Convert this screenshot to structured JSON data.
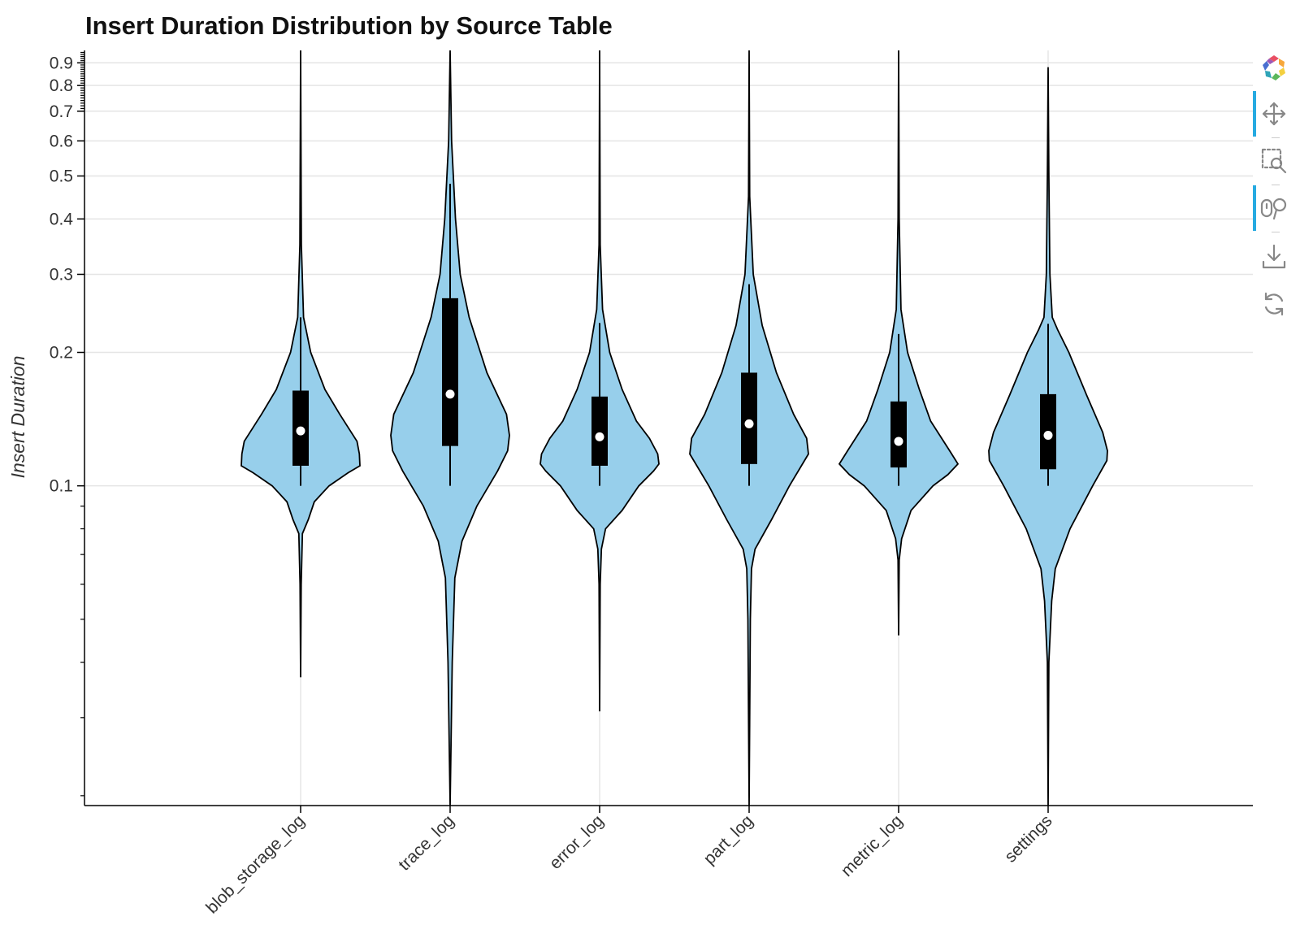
{
  "chart_data": {
    "type": "violin",
    "title": "Insert Duration Distribution by Source Table",
    "xlabel": "",
    "ylabel": "Insert Duration",
    "yscale": "log",
    "ylim": [
      0.019,
      0.96
    ],
    "y_ticks": [
      0.1,
      0.2,
      0.3,
      0.4,
      0.5,
      0.6,
      0.7,
      0.8,
      0.9
    ],
    "y_tick_labels": [
      "0.1",
      "0.2",
      "0.3",
      "0.4",
      "0.5",
      "0.6",
      "0.7",
      "0.8",
      "0.9"
    ],
    "categories": [
      "blob_storage_log",
      "trace_log",
      "error_log",
      "part_log",
      "metric_log",
      "settings"
    ],
    "fill_color": "#97cfeb",
    "outline_color": "#000000",
    "grid": true,
    "series": [
      {
        "name": "blob_storage_log",
        "min": 0.037,
        "max": 1.0,
        "q1": 0.111,
        "median": 0.133,
        "q3": 0.164,
        "whisker_low": 0.1,
        "whisker_high": 0.24,
        "profile": [
          [
            0.037,
            0.0
          ],
          [
            0.06,
            0.01
          ],
          [
            0.078,
            0.03
          ],
          [
            0.084,
            0.13
          ],
          [
            0.092,
            0.23
          ],
          [
            0.1,
            0.48
          ],
          [
            0.107,
            0.8
          ],
          [
            0.111,
            1.0
          ],
          [
            0.118,
            0.99
          ],
          [
            0.126,
            0.95
          ],
          [
            0.145,
            0.66
          ],
          [
            0.165,
            0.41
          ],
          [
            0.2,
            0.17
          ],
          [
            0.24,
            0.05
          ],
          [
            0.35,
            0.012
          ],
          [
            1.0,
            0.0
          ]
        ]
      },
      {
        "name": "trace_log",
        "min": 0.019,
        "max": 1.0,
        "q1": 0.123,
        "median": 0.161,
        "q3": 0.265,
        "whisker_low": 0.1,
        "whisker_high": 0.48,
        "profile": [
          [
            0.019,
            0.0
          ],
          [
            0.04,
            0.035
          ],
          [
            0.062,
            0.08
          ],
          [
            0.075,
            0.2
          ],
          [
            0.09,
            0.45
          ],
          [
            0.108,
            0.8
          ],
          [
            0.12,
            0.97
          ],
          [
            0.13,
            1.0
          ],
          [
            0.145,
            0.95
          ],
          [
            0.18,
            0.62
          ],
          [
            0.24,
            0.32
          ],
          [
            0.3,
            0.17
          ],
          [
            0.4,
            0.09
          ],
          [
            0.6,
            0.025
          ],
          [
            1.0,
            0.0
          ]
        ]
      },
      {
        "name": "error_log",
        "min": 0.031,
        "max": 1.0,
        "q1": 0.111,
        "median": 0.129,
        "q3": 0.159,
        "whisker_low": 0.1,
        "whisker_high": 0.233,
        "profile": [
          [
            0.031,
            0.0
          ],
          [
            0.06,
            0.01
          ],
          [
            0.072,
            0.03
          ],
          [
            0.08,
            0.1
          ],
          [
            0.088,
            0.38
          ],
          [
            0.1,
            0.66
          ],
          [
            0.108,
            0.91
          ],
          [
            0.112,
            1.0
          ],
          [
            0.118,
            0.98
          ],
          [
            0.128,
            0.84
          ],
          [
            0.14,
            0.62
          ],
          [
            0.165,
            0.38
          ],
          [
            0.2,
            0.17
          ],
          [
            0.25,
            0.05
          ],
          [
            0.35,
            0.01
          ],
          [
            1.0,
            0.0
          ]
        ]
      },
      {
        "name": "part_log",
        "min": 0.019,
        "max": 1.0,
        "q1": 0.112,
        "median": 0.138,
        "q3": 0.18,
        "whisker_low": 0.1,
        "whisker_high": 0.285,
        "profile": [
          [
            0.019,
            0.0
          ],
          [
            0.05,
            0.02
          ],
          [
            0.065,
            0.04
          ],
          [
            0.072,
            0.1
          ],
          [
            0.084,
            0.38
          ],
          [
            0.1,
            0.68
          ],
          [
            0.118,
            1.0
          ],
          [
            0.128,
            0.97
          ],
          [
            0.145,
            0.75
          ],
          [
            0.18,
            0.46
          ],
          [
            0.23,
            0.22
          ],
          [
            0.3,
            0.07
          ],
          [
            0.45,
            0.01
          ],
          [
            1.0,
            0.0
          ]
        ]
      },
      {
        "name": "metric_log",
        "min": 0.046,
        "max": 1.0,
        "q1": 0.11,
        "median": 0.126,
        "q3": 0.155,
        "whisker_low": 0.1,
        "whisker_high": 0.22,
        "profile": [
          [
            0.046,
            0.0
          ],
          [
            0.068,
            0.01
          ],
          [
            0.076,
            0.05
          ],
          [
            0.088,
            0.21
          ],
          [
            0.1,
            0.58
          ],
          [
            0.106,
            0.83
          ],
          [
            0.112,
            1.0
          ],
          [
            0.12,
            0.86
          ],
          [
            0.14,
            0.54
          ],
          [
            0.165,
            0.35
          ],
          [
            0.2,
            0.15
          ],
          [
            0.25,
            0.04
          ],
          [
            0.4,
            0.01
          ],
          [
            1.0,
            0.0
          ]
        ]
      },
      {
        "name": "settings",
        "min": 0.019,
        "max": 0.88,
        "q1": 0.109,
        "median": 0.13,
        "q3": 0.161,
        "whisker_low": 0.1,
        "whisker_high": 0.232,
        "profile": [
          [
            0.019,
            0.0
          ],
          [
            0.04,
            0.012
          ],
          [
            0.055,
            0.06
          ],
          [
            0.065,
            0.12
          ],
          [
            0.08,
            0.37
          ],
          [
            0.1,
            0.75
          ],
          [
            0.114,
            0.99
          ],
          [
            0.12,
            1.0
          ],
          [
            0.132,
            0.92
          ],
          [
            0.16,
            0.65
          ],
          [
            0.2,
            0.35
          ],
          [
            0.225,
            0.16
          ],
          [
            0.24,
            0.07
          ],
          [
            0.3,
            0.03
          ],
          [
            0.5,
            0.012
          ],
          [
            0.88,
            0.0
          ]
        ]
      }
    ]
  },
  "toolbar": {
    "tools": [
      {
        "name": "bokeh-logo-icon",
        "label": "Bokeh",
        "active": false
      },
      {
        "name": "pan-icon",
        "label": "Pan",
        "active": true
      },
      {
        "name": "box-zoom-icon",
        "label": "Box Zoom",
        "active": false
      },
      {
        "name": "wheel-zoom-icon",
        "label": "Wheel Zoom",
        "active": true
      },
      {
        "name": "save-icon",
        "label": "Save",
        "active": false
      },
      {
        "name": "reset-icon",
        "label": "Reset",
        "active": false
      }
    ]
  }
}
